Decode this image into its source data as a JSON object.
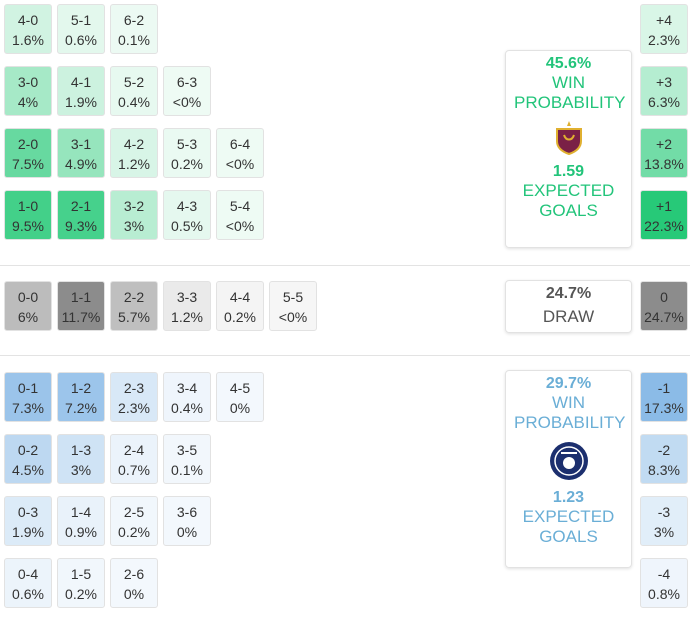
{
  "home": {
    "rows": [
      [
        {
          "score": "4-0",
          "prob": "1.6%"
        },
        {
          "score": "5-1",
          "prob": "0.6%"
        },
        {
          "score": "6-2",
          "prob": "0.1%"
        }
      ],
      [
        {
          "score": "3-0",
          "prob": "4%"
        },
        {
          "score": "4-1",
          "prob": "1.9%"
        },
        {
          "score": "5-2",
          "prob": "0.4%"
        },
        {
          "score": "6-3",
          "prob": "<0%"
        }
      ],
      [
        {
          "score": "2-0",
          "prob": "7.5%"
        },
        {
          "score": "3-1",
          "prob": "4.9%"
        },
        {
          "score": "4-2",
          "prob": "1.2%"
        },
        {
          "score": "5-3",
          "prob": "0.2%"
        },
        {
          "score": "6-4",
          "prob": "<0%"
        }
      ],
      [
        {
          "score": "1-0",
          "prob": "9.5%"
        },
        {
          "score": "2-1",
          "prob": "9.3%"
        },
        {
          "score": "3-2",
          "prob": "3%"
        },
        {
          "score": "4-3",
          "prob": "0.5%"
        },
        {
          "score": "5-4",
          "prob": "<0%"
        }
      ]
    ],
    "win_probability": "45.6%",
    "win_label": "WIN PROBABILITY",
    "expected_goals": "1.59",
    "expected_goals_label": "EXPECTED GOALS",
    "margins": [
      {
        "label": "+4",
        "prob": "2.3%"
      },
      {
        "label": "+3",
        "prob": "6.3%"
      },
      {
        "label": "+2",
        "prob": "13.8%"
      },
      {
        "label": "+1",
        "prob": "22.3%"
      }
    ]
  },
  "draw": {
    "rows": [
      [
        {
          "score": "0-0",
          "prob": "6%"
        },
        {
          "score": "1-1",
          "prob": "11.7%"
        },
        {
          "score": "2-2",
          "prob": "5.7%"
        },
        {
          "score": "3-3",
          "prob": "1.2%"
        },
        {
          "score": "4-4",
          "prob": "0.2%"
        },
        {
          "score": "5-5",
          "prob": "<0%"
        }
      ]
    ],
    "probability": "24.7%",
    "label": "DRAW",
    "margins": [
      {
        "label": "0",
        "prob": "24.7%"
      }
    ]
  },
  "away": {
    "rows": [
      [
        {
          "score": "0-1",
          "prob": "7.3%"
        },
        {
          "score": "1-2",
          "prob": "7.2%"
        },
        {
          "score": "2-3",
          "prob": "2.3%"
        },
        {
          "score": "3-4",
          "prob": "0.4%"
        },
        {
          "score": "4-5",
          "prob": "0%"
        }
      ],
      [
        {
          "score": "0-2",
          "prob": "4.5%"
        },
        {
          "score": "1-3",
          "prob": "3%"
        },
        {
          "score": "2-4",
          "prob": "0.7%"
        },
        {
          "score": "3-5",
          "prob": "0.1%"
        }
      ],
      [
        {
          "score": "0-3",
          "prob": "1.9%"
        },
        {
          "score": "1-4",
          "prob": "0.9%"
        },
        {
          "score": "2-5",
          "prob": "0.2%"
        },
        {
          "score": "3-6",
          "prob": "0%"
        }
      ],
      [
        {
          "score": "0-4",
          "prob": "0.6%"
        },
        {
          "score": "1-5",
          "prob": "0.2%"
        },
        {
          "score": "2-6",
          "prob": "0%"
        }
      ]
    ],
    "win_probability": "29.7%",
    "win_label": "WIN PROBABILITY",
    "expected_goals": "1.23",
    "expected_goals_label": "EXPECTED GOALS",
    "margins": [
      {
        "label": "-1",
        "prob": "17.3%"
      },
      {
        "label": "-2",
        "prob": "8.3%"
      },
      {
        "label": "-3",
        "prob": "3%"
      },
      {
        "label": "-4",
        "prob": "0.8%"
      }
    ]
  }
}
